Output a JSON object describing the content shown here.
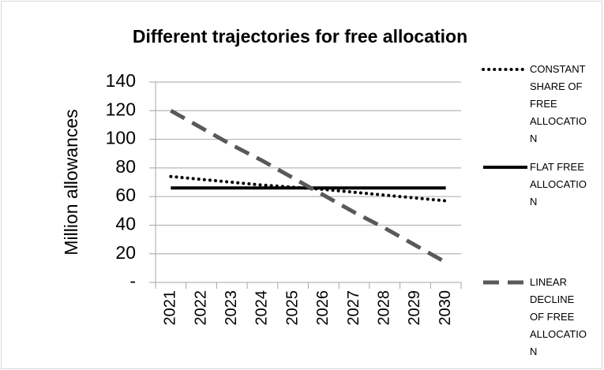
{
  "chart_data": {
    "type": "line",
    "title": "Different trajectories for free allocation",
    "y_label": "Million allowances",
    "categories": [
      "2021",
      "2022",
      "2023",
      "2024",
      "2025",
      "2026",
      "2027",
      "2028",
      "2029",
      "2030"
    ],
    "series": [
      {
        "name": "CONSTANT SHARE OF FREE ALLOCATION",
        "color": "#000000",
        "dash": "dotted",
        "values": [
          74,
          72,
          70,
          68,
          66.5,
          65,
          63,
          61,
          59,
          57
        ]
      },
      {
        "name": "FLAT FREE ALLOCATION",
        "color": "#000000",
        "dash": "solid",
        "values": [
          66,
          66,
          66,
          66,
          66,
          66,
          66,
          66,
          66,
          66
        ]
      },
      {
        "name": "LINEAR DECLINE OF FREE ALLOCATION",
        "color": "#595959",
        "dash": "dashed",
        "values": [
          120,
          108,
          96,
          85,
          73,
          61,
          49,
          38,
          26,
          14
        ]
      }
    ],
    "ylim": [
      0,
      140
    ],
    "yticks": [
      {
        "value": 0,
        "label": "-"
      },
      20,
      40,
      60,
      80,
      100,
      120,
      140
    ],
    "grid": true,
    "legend": "right"
  }
}
